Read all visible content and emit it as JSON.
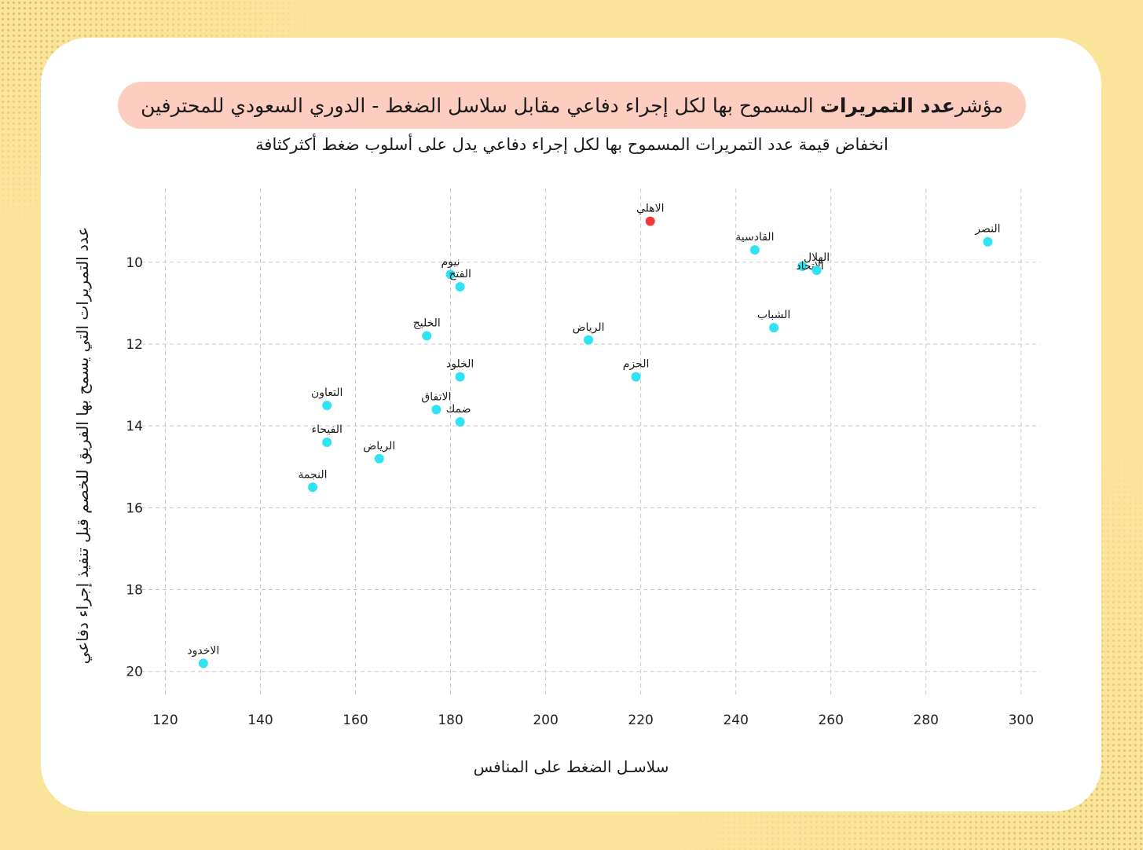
{
  "title": {
    "prefix": "مؤشر",
    "bold": "عدد التمريرات",
    "rest": "المسموح بها لكل إجراء دفاعي مقابل سلاسل الضغط - الدوري السعودي للمحترفين"
  },
  "subtitle": "انخفاض قيمة عدد التمريرات المسموح بها لكل إجراء دفاعي يدل على أسلوب ضغط أكثركثافة",
  "colors": {
    "background": "#f9e49a",
    "card": "#ffffff",
    "title_pill": "#fdcdc0",
    "point": "#2fe3f2",
    "highlight": "#f23a3a",
    "grid": "#c8c8c8"
  },
  "chart_data": {
    "type": "scatter",
    "xlabel": "سلاسـل الضغط على المنافس",
    "ylabel": "عدد التمريرات التي يسمح بها الفريق للخصم قبل تنفيذ إجراء دفاعي",
    "xlim": [
      112,
      304
    ],
    "ylim": [
      8.2,
      20.6
    ],
    "y_inverted": true,
    "grid": true,
    "xticks": [
      120,
      140,
      160,
      180,
      200,
      220,
      240,
      260,
      280,
      300
    ],
    "yticks": [
      10,
      12,
      14,
      16,
      18,
      20
    ],
    "points": [
      {
        "label": "الاهلي",
        "x": 222,
        "y": 9.0,
        "highlight": true
      },
      {
        "label": "النصر",
        "x": 293,
        "y": 9.5
      },
      {
        "label": "القادسية",
        "x": 244,
        "y": 9.7
      },
      {
        "label": "الاتحاد",
        "x": 254,
        "y": 10.1
      },
      {
        "label": "الهلال",
        "x": 257,
        "y": 10.2
      },
      {
        "label": "نيوم",
        "x": 180,
        "y": 10.3
      },
      {
        "label": "الفتح",
        "x": 182,
        "y": 10.6
      },
      {
        "label": "الشباب",
        "x": 248,
        "y": 11.6
      },
      {
        "label": "الخليج",
        "x": 175,
        "y": 11.8
      },
      {
        "label": "الرياض",
        "x": 209,
        "y": 11.9
      },
      {
        "label": "الخلود",
        "x": 182,
        "y": 12.8
      },
      {
        "label": "الحزم",
        "x": 219,
        "y": 12.8
      },
      {
        "label": "التعاون",
        "x": 154,
        "y": 13.5
      },
      {
        "label": "الاتفاق",
        "x": 177,
        "y": 13.6
      },
      {
        "label": "ضمك",
        "x": 182,
        "y": 13.9
      },
      {
        "label": "الفيحاء",
        "x": 154,
        "y": 14.4
      },
      {
        "label": "الرياض",
        "x": 165,
        "y": 14.8
      },
      {
        "label": "النجمة",
        "x": 151,
        "y": 15.5
      },
      {
        "label": "الاخدود",
        "x": 128,
        "y": 19.8
      }
    ]
  }
}
